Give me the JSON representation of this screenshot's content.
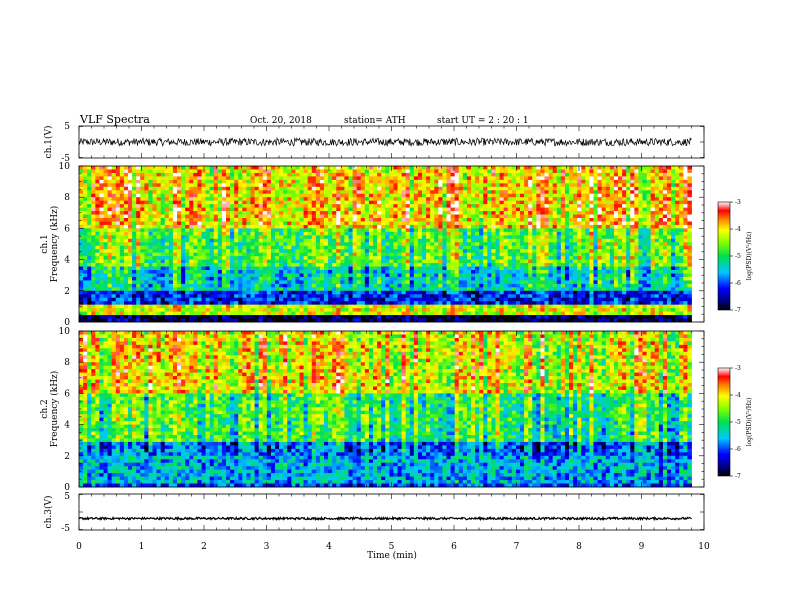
{
  "header": {
    "title": "VLF  Spectra",
    "date": "Oct. 20, 2018",
    "station": "station= ATH",
    "start": "start  UT  =   2  : 20 : 1"
  },
  "chart_data": [
    {
      "type": "line",
      "name": "ch1-waveform",
      "ylabel": "ch.1(V)",
      "ylim": [
        -5,
        5
      ],
      "yticks": [
        "5",
        "-5"
      ],
      "xlim": [
        0,
        10
      ],
      "data_extent_min": 9.8,
      "signal": {
        "mean": 0,
        "spread": 1.2
      }
    },
    {
      "type": "heatmap",
      "name": "ch1-spectrogram",
      "ylabel": "ch.1\nFrequency (kHz)",
      "ylim": [
        0,
        10
      ],
      "yticks": [
        "0",
        "2",
        "4",
        "6",
        "8",
        "10"
      ],
      "xlim": [
        0,
        10
      ],
      "data_extent_min": 9.8,
      "zlim": [
        -7,
        -3
      ],
      "colorbar_ticks": [
        "-3",
        "-4",
        "-5",
        "-6",
        "-7"
      ],
      "colorbar_label": "log(PSD)(V²/Hz)",
      "bands": [
        {
          "from_khz": 0.0,
          "to_khz": 0.4,
          "level": -6.8
        },
        {
          "from_khz": 0.4,
          "to_khz": 1.0,
          "level": -4.2
        },
        {
          "from_khz": 1.0,
          "to_khz": 2.0,
          "level": -6.2
        },
        {
          "from_khz": 2.0,
          "to_khz": 3.5,
          "level": -5.3
        },
        {
          "from_khz": 3.5,
          "to_khz": 6.0,
          "level": -4.7
        },
        {
          "from_khz": 6.0,
          "to_khz": 10.0,
          "level": -3.9
        }
      ]
    },
    {
      "type": "heatmap",
      "name": "ch2-spectrogram",
      "ylabel": "ch.2\nFrequency (kHz)",
      "ylim": [
        0,
        10
      ],
      "yticks": [
        "0",
        "2",
        "4",
        "6",
        "8",
        "10"
      ],
      "xlim": [
        0,
        10
      ],
      "data_extent_min": 9.8,
      "zlim": [
        -7,
        -3
      ],
      "colorbar_ticks": [
        "-3",
        "-4",
        "-5",
        "-6",
        "-7"
      ],
      "colorbar_label": "log(PSD)(V²/Hz)",
      "bands": [
        {
          "from_khz": 0.0,
          "to_khz": 0.2,
          "level": -6.0
        },
        {
          "from_khz": 0.2,
          "to_khz": 1.9,
          "level": -5.6
        },
        {
          "from_khz": 1.9,
          "to_khz": 2.1,
          "level": -4.5
        },
        {
          "from_khz": 2.1,
          "to_khz": 3.0,
          "level": -5.9
        },
        {
          "from_khz": 3.0,
          "to_khz": 6.0,
          "level": -4.9
        },
        {
          "from_khz": 6.0,
          "to_khz": 10.0,
          "level": -4.1
        }
      ]
    },
    {
      "type": "line",
      "name": "ch3-waveform",
      "ylabel": "ch.3(V)",
      "ylim": [
        -5,
        5
      ],
      "yticks": [
        "5",
        "-5"
      ],
      "xlim": [
        0,
        10
      ],
      "data_extent_min": 9.8,
      "signal": {
        "mean": -1.8,
        "spread": 0.3
      },
      "xticks": [
        "0",
        "1",
        "2",
        "3",
        "4",
        "5",
        "6",
        "7",
        "8",
        "9",
        "10"
      ],
      "xlabel": "Time  (min)"
    }
  ]
}
